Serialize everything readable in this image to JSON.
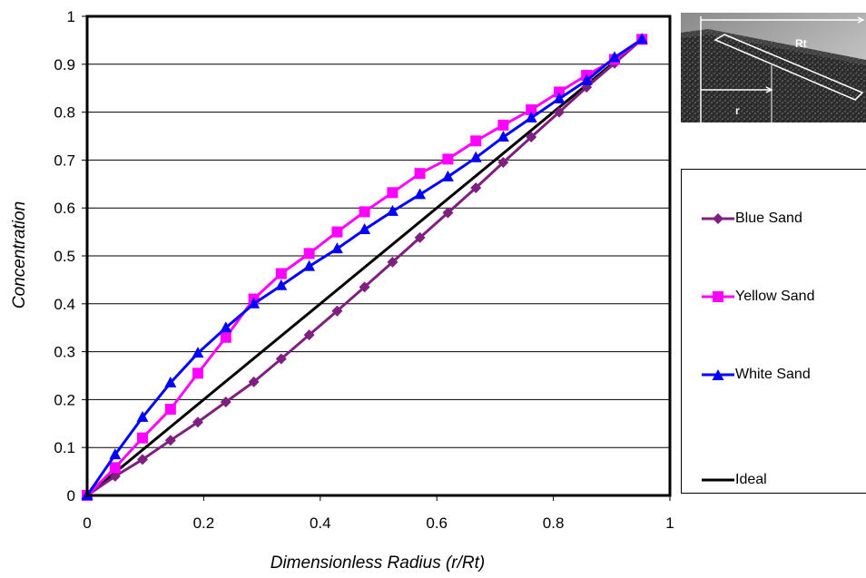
{
  "chart_data": {
    "type": "line",
    "title": "",
    "xlabel": "Dimensionless Radius (r/Rt)",
    "ylabel": "Concentration",
    "xlim": [
      0,
      1
    ],
    "ylim": [
      0,
      1
    ],
    "xticks": [
      "0",
      "0.2",
      "0.4",
      "0.6",
      "0.8",
      "1"
    ],
    "yticks": [
      "0",
      "0.1",
      "0.2",
      "0.3",
      "0.4",
      "0.5",
      "0.6",
      "0.7",
      "0.8",
      "0.9",
      "1"
    ],
    "grid": "horizontal",
    "legend_placement": "right",
    "series": [
      {
        "name": "Blue Sand",
        "color": "#7f1f7f",
        "marker": "diamond",
        "x": [
          0,
          0.048,
          0.095,
          0.143,
          0.19,
          0.238,
          0.286,
          0.333,
          0.381,
          0.429,
          0.476,
          0.524,
          0.571,
          0.619,
          0.667,
          0.714,
          0.762,
          0.81,
          0.857,
          0.905,
          0.952
        ],
        "y": [
          0,
          0.04,
          0.075,
          0.115,
          0.153,
          0.195,
          0.237,
          0.285,
          0.335,
          0.385,
          0.435,
          0.487,
          0.538,
          0.59,
          0.642,
          0.695,
          0.748,
          0.8,
          0.852,
          0.902,
          0.952
        ]
      },
      {
        "name": "Yellow Sand",
        "color": "#ff00ff",
        "marker": "square",
        "x": [
          0,
          0.048,
          0.095,
          0.143,
          0.19,
          0.238,
          0.286,
          0.333,
          0.381,
          0.429,
          0.476,
          0.524,
          0.571,
          0.619,
          0.667,
          0.714,
          0.762,
          0.81,
          0.857,
          0.905,
          0.952
        ],
        "y": [
          0,
          0.058,
          0.12,
          0.18,
          0.255,
          0.33,
          0.41,
          0.463,
          0.505,
          0.55,
          0.592,
          0.632,
          0.672,
          0.702,
          0.74,
          0.773,
          0.805,
          0.842,
          0.877,
          0.91,
          0.952
        ]
      },
      {
        "name": "White Sand",
        "color": "#0000ff",
        "marker": "triangle",
        "x": [
          0,
          0.048,
          0.095,
          0.143,
          0.19,
          0.238,
          0.286,
          0.333,
          0.381,
          0.429,
          0.476,
          0.524,
          0.571,
          0.619,
          0.667,
          0.714,
          0.762,
          0.81,
          0.857,
          0.905,
          0.952
        ],
        "y": [
          0,
          0.085,
          0.163,
          0.235,
          0.297,
          0.35,
          0.4,
          0.438,
          0.478,
          0.515,
          0.555,
          0.593,
          0.628,
          0.665,
          0.705,
          0.748,
          0.788,
          0.828,
          0.866,
          0.914,
          0.952
        ]
      },
      {
        "name": "Ideal",
        "color": "#000000",
        "marker": "none",
        "x": [
          0,
          0.952
        ],
        "y": [
          0,
          0.952
        ]
      }
    ]
  },
  "inset_photo": {
    "label_rt": "Rt",
    "label_r": "r"
  }
}
